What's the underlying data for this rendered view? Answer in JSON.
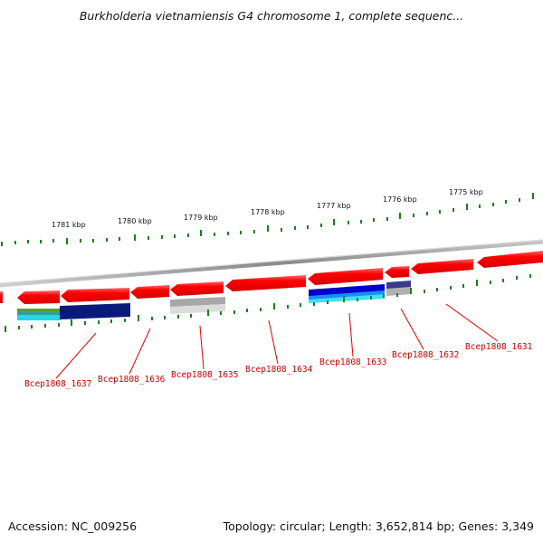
{
  "title": "Burkholderia vietnamiensis G4 chromosome 1, complete sequenc...",
  "footer": {
    "accession": "Accession: NC_009256",
    "topology": "Topology: circular; Length: 3,652,814 bp; Genes: 3,349"
  },
  "scale_labels": [
    "1781 kbp",
    "1780 kbp",
    "1779 kbp",
    "1778 kbp",
    "1777 kbp",
    "1776 kbp",
    "1775 kbp"
  ],
  "genes": [
    "Bcep1808_1637",
    "Bcep1808_1636",
    "Bcep1808_1635",
    "Bcep1808_1634",
    "Bcep1808_1633",
    "Bcep1808_1632",
    "Bcep1808_1631"
  ],
  "colors": {
    "gene_arrow": "#ff0000",
    "backbone": "#888888",
    "tick": "#1a7f1a",
    "label": "#cc0000"
  }
}
